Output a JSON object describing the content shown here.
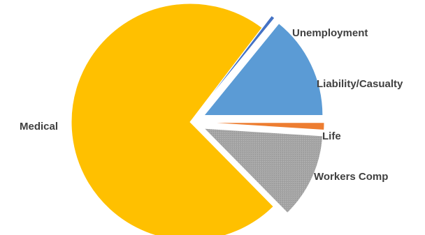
{
  "chart_data": {
    "type": "pie",
    "title": "",
    "exploded": true,
    "start_angle_deg": 0,
    "direction": "counterclockwise",
    "slices": [
      {
        "name": "Liability/Casualty",
        "value": 14.0,
        "color": "#5b9bd5"
      },
      {
        "name": "Unemployment",
        "value": 0.5,
        "color": "#4472c4"
      },
      {
        "name": "Medical",
        "value": 72.0,
        "color": "#ffc000"
      },
      {
        "name": "Workers Comp",
        "value": 11.5,
        "color": "#a5a5a5"
      },
      {
        "name": "Life",
        "value": 1.0,
        "color": "#ed7d31"
      }
    ]
  }
}
